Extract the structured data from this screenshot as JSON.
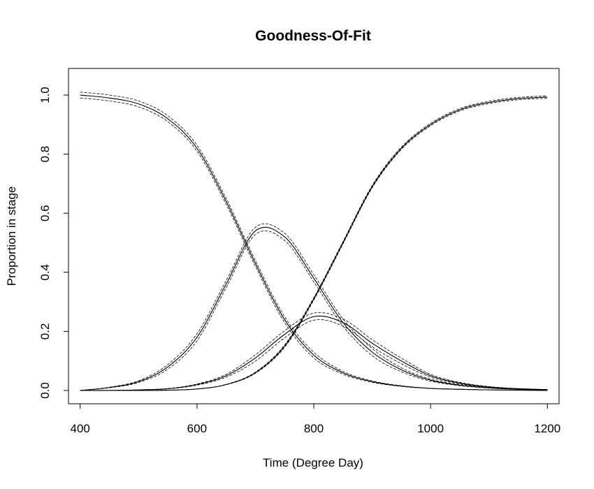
{
  "chart_data": {
    "type": "line",
    "title": "Goodness-Of-Fit",
    "xlabel": "Time (Degree Day)",
    "ylabel": "Proportion in stage",
    "xlim": [
      380,
      1220
    ],
    "ylim": [
      -0.045,
      1.09
    ],
    "x_ticks": [
      400,
      600,
      800,
      1000,
      1200
    ],
    "x_tick_labels": [
      "400",
      "600",
      "800",
      "1000",
      "1200"
    ],
    "y_ticks": [
      0.0,
      0.2,
      0.4,
      0.6,
      0.8,
      1.0
    ],
    "y_tick_labels": [
      "0.0",
      "0.2",
      "0.4",
      "0.6",
      "0.8",
      "1.0"
    ],
    "grid": false,
    "legend": "none",
    "line_color": "#000000",
    "x": [
      400,
      450,
      500,
      550,
      600,
      650,
      700,
      750,
      800,
      850,
      900,
      950,
      1000,
      1050,
      1100,
      1150,
      1200
    ],
    "series": [
      {
        "values": [
          1.0,
          0.99,
          0.97,
          0.92,
          0.82,
          0.64,
          0.43,
          0.24,
          0.12,
          0.06,
          0.03,
          0.015,
          0.007,
          0.004,
          0.002,
          0.001,
          0.0
        ],
        "band_offset": 0.01
      },
      {
        "values": [
          0.0,
          0.01,
          0.03,
          0.08,
          0.18,
          0.36,
          0.54,
          0.52,
          0.38,
          0.23,
          0.13,
          0.07,
          0.035,
          0.018,
          0.009,
          0.004,
          0.002
        ],
        "band_offset": 0.012
      },
      {
        "values": [
          0.0,
          0.0,
          0.002,
          0.006,
          0.02,
          0.05,
          0.11,
          0.19,
          0.25,
          0.23,
          0.16,
          0.1,
          0.05,
          0.025,
          0.012,
          0.006,
          0.003
        ],
        "band_offset": 0.012
      },
      {
        "values": [
          0.0,
          0.0,
          0.0,
          0.001,
          0.005,
          0.02,
          0.06,
          0.15,
          0.31,
          0.5,
          0.69,
          0.82,
          0.9,
          0.95,
          0.975,
          0.988,
          0.993
        ],
        "band_offset": 0.004
      }
    ]
  }
}
